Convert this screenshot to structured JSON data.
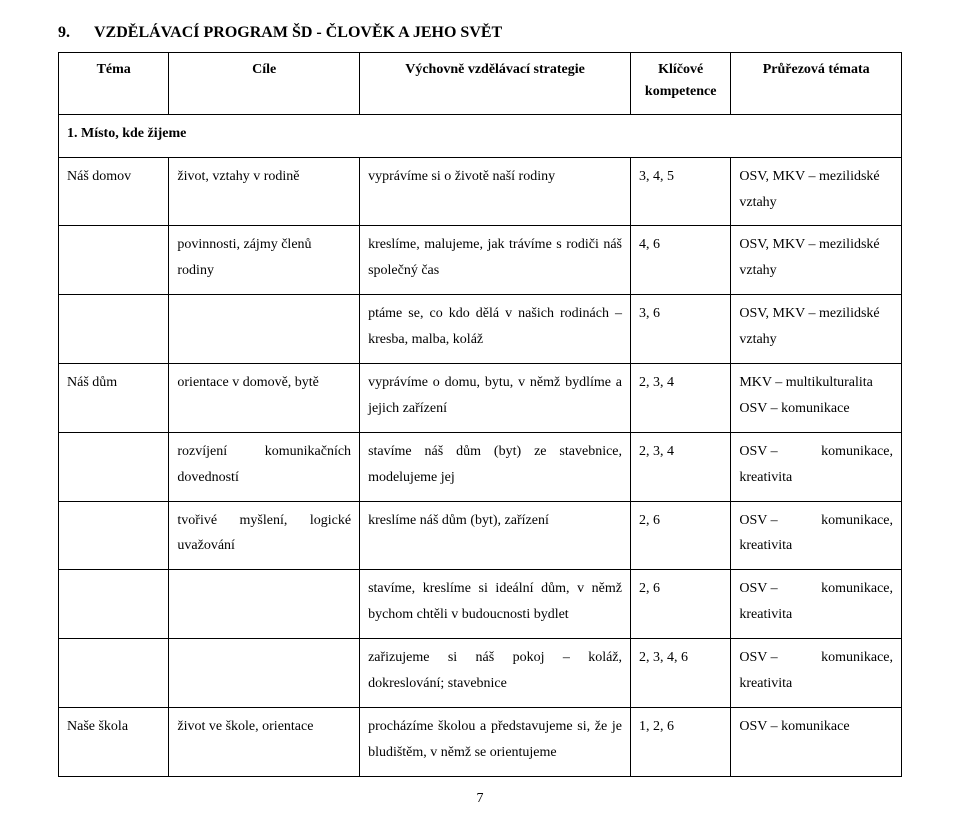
{
  "heading": {
    "num": "9.",
    "title": "VZDĚLÁVACÍ PROGRAM ŠD - ČLOVĚK A JEHO SVĚT"
  },
  "headers": {
    "c1": "Téma",
    "c2": "Cíle",
    "c3": "Výchovně vzdělávací strategie",
    "c4_l1": "Klíčové",
    "c4_l2": "kompetence",
    "c5": "Průřezová témata"
  },
  "section": "1. Místo, kde žijeme",
  "r1": {
    "c1": "Náš domov",
    "c2": "život, vztahy v rodině",
    "c3": "vyprávíme si o životě naší rodiny",
    "c4": "3, 4, 5",
    "c5": "OSV, MKV – mezilidské vztahy"
  },
  "r2": {
    "c2": "povinnosti, zájmy členů rodiny",
    "c3": "kreslíme, malujeme, jak trávíme s rodiči náš společný čas",
    "c4": "4, 6",
    "c5": "OSV, MKV – mezilidské vztahy"
  },
  "r3": {
    "c3": "ptáme se, co kdo dělá v našich rodinách – kresba, malba, koláž",
    "c4": "3, 6",
    "c5": "OSV, MKV – mezilidské vztahy"
  },
  "r4": {
    "c1": "Náš dům",
    "c2": "orientace v domově, bytě",
    "c3": "vyprávíme o domu, bytu, v němž bydlíme a jejich zařízení",
    "c4": "2, 3, 4",
    "c5_l1": "MKV – multikulturalita",
    "c5_l2": "OSV – komunikace"
  },
  "r5": {
    "c2_w1": "rozvíjení",
    "c2_w2": "komunikačních",
    "c2_l2": "dovedností",
    "c3": "stavíme náš dům (byt) ze stavebnice, modelujeme jej",
    "c4": "2, 3, 4",
    "c5_left": "OSV –",
    "c5_right": "komunikace,",
    "c5_l2": "kreativita"
  },
  "r6": {
    "c2_w1": "tvořivé",
    "c2_w2": "myšlení,",
    "c2_w3": "logické",
    "c2_l2": "uvažování",
    "c3": "kreslíme náš dům (byt), zařízení",
    "c4": "2, 6",
    "c5_left": "OSV –",
    "c5_right": "komunikace,",
    "c5_l2": "kreativita"
  },
  "r7": {
    "c3": "stavíme, kreslíme si ideální dům, v němž bychom chtěli v budoucnosti bydlet",
    "c4": "2, 6",
    "c5_left": "OSV –",
    "c5_right": "komunikace,",
    "c5_l2": "kreativita"
  },
  "r8": {
    "c3": "zařizujeme si náš pokoj – koláž, dokreslování; stavebnice",
    "c4": "2, 3, 4, 6",
    "c5_left": "OSV –",
    "c5_right": "komunikace,",
    "c5_l2": "kreativita"
  },
  "r9": {
    "c1": "Naše škola",
    "c2": "život ve škole, orientace",
    "c3": "procházíme školou a představujeme si, že je bludištěm, v němž se orientujeme",
    "c4": "1, 2, 6",
    "c5": "OSV – komunikace"
  },
  "pagenum": "7"
}
